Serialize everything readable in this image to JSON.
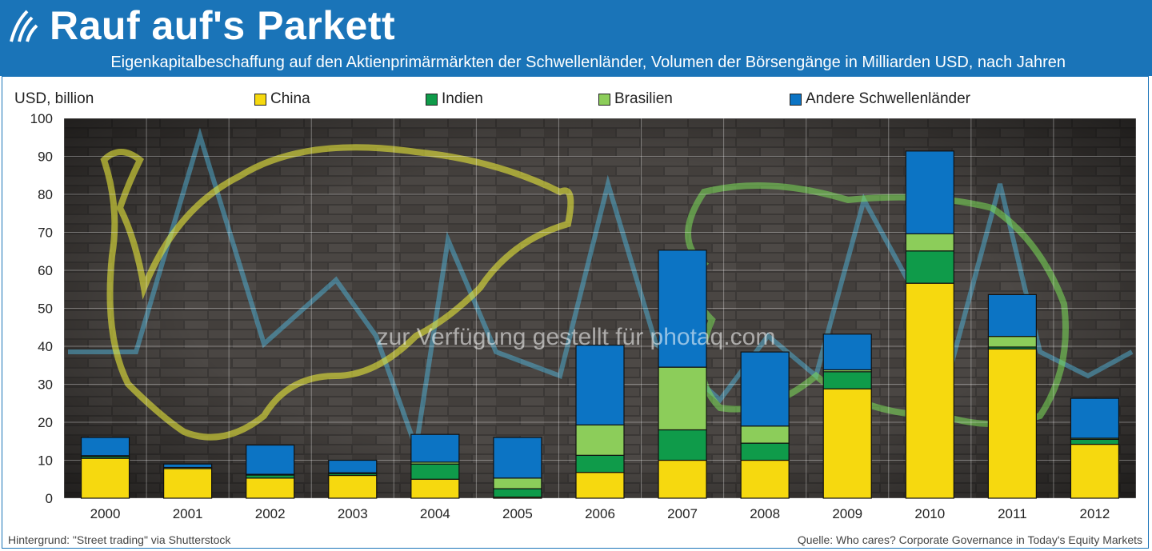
{
  "header": {
    "title": "Rauf auf's Parkett",
    "subtitle": "Eigenkapitalbeschaffung auf den Aktienprimärmärkten der Schwellenländer, Volumen der Börsengänge in Milliarden USD, nach Jahren",
    "logo_icon": "oecd-logo-icon"
  },
  "colors": {
    "header_bg": "#1a74b8",
    "china": "#f6d90f",
    "indien": "#0f9b4a",
    "brasilien": "#8ccd5a",
    "andere": "#0c74c4"
  },
  "watermark": "zur Verfügung gestellt für photaq.com",
  "footer": {
    "left": "Hintergrund: \"Street trading\" via Shutterstock",
    "right": "Quelle: Who cares? Corporate Governance in Today's Equity Markets"
  },
  "chart_data": {
    "type": "bar",
    "stacked": true,
    "ylabel": "USD, billion",
    "ylim": [
      0,
      100
    ],
    "yticks": [
      "0",
      "10",
      "20",
      "30",
      "40",
      "50",
      "60",
      "70",
      "80",
      "90",
      "100"
    ],
    "grid": true,
    "legend_position": "top",
    "categories": [
      "2000",
      "2001",
      "2002",
      "2003",
      "2004",
      "2005",
      "2006",
      "2007",
      "2008",
      "2009",
      "2010",
      "2011",
      "2012"
    ],
    "series": [
      {
        "name": "China",
        "values": [
          10.5,
          7.8,
          5.3,
          6.0,
          5.0,
          0.3,
          6.8,
          10.0,
          10.0,
          28.8,
          56.6,
          39.3,
          14.2
        ]
      },
      {
        "name": "Indien",
        "values": [
          0.5,
          0.0,
          0.8,
          0.5,
          4.0,
          2.2,
          4.5,
          8.0,
          4.5,
          4.5,
          8.5,
          0.5,
          1.3
        ]
      },
      {
        "name": "Brasilien",
        "values": [
          0.2,
          0.3,
          0.2,
          0.2,
          0.5,
          2.8,
          8.0,
          16.5,
          4.5,
          0.5,
          4.5,
          2.8,
          0.3
        ]
      },
      {
        "name": "Andere Schwellenländer",
        "values": [
          4.8,
          0.9,
          7.7,
          3.3,
          7.3,
          10.7,
          21.0,
          30.8,
          19.5,
          9.4,
          21.8,
          11.0,
          10.5
        ]
      }
    ]
  }
}
